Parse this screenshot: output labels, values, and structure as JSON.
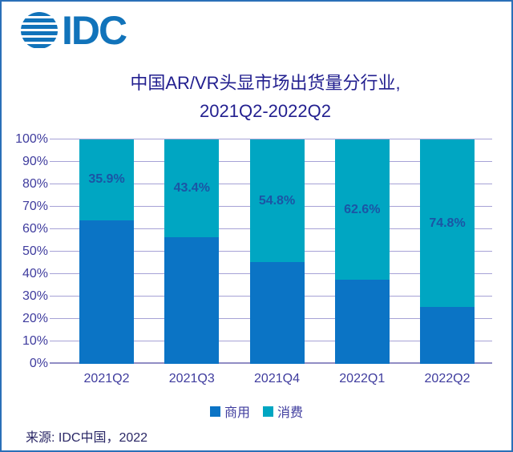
{
  "logo": {
    "text": "IDC",
    "color": "#1173ba"
  },
  "title": {
    "line1": "中国AR/VR头显市场出货量分行业,",
    "line2": "2021Q2-2022Q2",
    "color": "#221f8f"
  },
  "chart_data": {
    "type": "bar",
    "stacked": true,
    "unit": "%",
    "title": "中国AR/VR头显市场出货量分行业, 2021Q2-2022Q2",
    "categories": [
      "2021Q2",
      "2021Q3",
      "2021Q4",
      "2022Q1",
      "2022Q2"
    ],
    "series": [
      {
        "name": "商用",
        "key": "commercial",
        "color": "#0b74c5",
        "values": [
          64.1,
          56.6,
          45.2,
          37.4,
          25.2
        ]
      },
      {
        "name": "消费",
        "key": "consumer",
        "color": "#00a6c2",
        "values": [
          35.9,
          43.4,
          54.8,
          62.6,
          74.8
        ],
        "data_labels": [
          "35.9%",
          "43.4%",
          "54.8%",
          "62.6%",
          "74.8%"
        ]
      }
    ],
    "ylim": [
      0,
      100
    ],
    "yticks": [
      "0%",
      "10%",
      "20%",
      "30%",
      "40%",
      "50%",
      "60%",
      "70%",
      "80%",
      "90%",
      "100%"
    ],
    "grid": true,
    "legend_position": "bottom",
    "colors": {
      "gridline": "#a6a2d6",
      "axis_label": "#3f3c9e",
      "data_label": "#1b55a5"
    }
  },
  "footer": {
    "source": "来源: IDC中国，2022"
  }
}
